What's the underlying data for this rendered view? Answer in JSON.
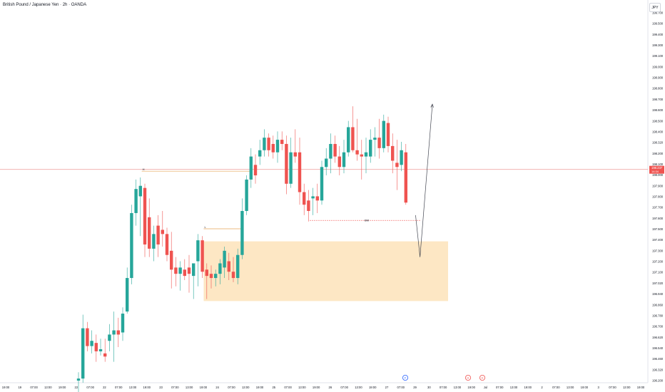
{
  "title": "British Pound / Japanese Yen · 2h · OANDA",
  "currency": "JPY",
  "colors": {
    "up": "#26a69a",
    "down": "#ef5350",
    "zone": "#fde7c4",
    "level": "#e6a456",
    "price_line": "#f0a8a6",
    "price_badge": "#ef5350"
  },
  "price_badge": {
    "price": "198.237",
    "time": "14:34"
  },
  "labels": {
    "high_label": "H",
    "low_label": "L",
    "bm_label": "BM"
  },
  "events": [
    "F",
    "H",
    "H"
  ],
  "chart_data": {
    "type": "candlestick",
    "ylim": [
      196.2,
      199.8
    ],
    "y_ticks": [
      "199.700",
      "199.500",
      "199.400",
      "199.300",
      "199.100",
      "199.000",
      "198.900",
      "198.800",
      "198.700",
      "198.600",
      "198.500",
      "198.400",
      "198.320",
      "198.200",
      "198.100",
      "198.000",
      "197.900",
      "197.800",
      "197.700",
      "197.600",
      "197.500",
      "197.400",
      "197.300",
      "197.200",
      "197.100",
      "197.020",
      "196.940",
      "196.860",
      "196.780",
      "196.700",
      "196.620",
      "196.540",
      "196.460",
      "196.320",
      "196.200"
    ],
    "x_ticks": [
      "19:00",
      "19",
      "07:00",
      "13:00",
      "19:00",
      "22",
      "07:00",
      "22",
      "07:00",
      "13:00",
      "19:00",
      "23",
      "07:00",
      "13:00",
      "19:00",
      "24",
      "07:00",
      "13:00",
      "19:00",
      "25",
      "07:00",
      "13:00",
      "19:00",
      "26",
      "07:00",
      "13:00",
      "19:00",
      "27",
      "07:00",
      "29",
      "30",
      "07:00",
      "13:00",
      "19:00",
      "Jul",
      "07:00",
      "13:00",
      "19:00",
      "2",
      "07:00",
      "13:00",
      "19:00",
      "3",
      "07:00",
      "13:00",
      "19:00"
    ],
    "candles": [
      {
        "o": 196.22,
        "h": 196.3,
        "l": 196.1,
        "c": 196.24
      },
      {
        "o": 196.24,
        "h": 196.85,
        "l": 196.2,
        "c": 196.72
      },
      {
        "o": 196.72,
        "h": 196.78,
        "l": 196.5,
        "c": 196.55
      },
      {
        "o": 196.55,
        "h": 196.7,
        "l": 196.48,
        "c": 196.6
      },
      {
        "o": 196.58,
        "h": 196.66,
        "l": 196.4,
        "c": 196.5
      },
      {
        "o": 196.5,
        "h": 196.62,
        "l": 196.46,
        "c": 196.52
      },
      {
        "o": 196.48,
        "h": 196.62,
        "l": 196.4,
        "c": 196.45
      },
      {
        "o": 196.6,
        "h": 196.76,
        "l": 196.5,
        "c": 196.66
      },
      {
        "o": 196.66,
        "h": 196.88,
        "l": 196.4,
        "c": 196.7
      },
      {
        "o": 196.7,
        "h": 196.82,
        "l": 196.54,
        "c": 196.66
      },
      {
        "o": 196.68,
        "h": 196.92,
        "l": 196.6,
        "c": 196.86
      },
      {
        "o": 196.88,
        "h": 197.3,
        "l": 196.86,
        "c": 197.2
      },
      {
        "o": 197.2,
        "h": 197.9,
        "l": 197.14,
        "c": 197.82
      },
      {
        "o": 197.82,
        "h": 198.14,
        "l": 197.7,
        "c": 198.05
      },
      {
        "o": 197.98,
        "h": 198.16,
        "l": 197.6,
        "c": 198.08
      },
      {
        "o": 198.06,
        "h": 198.1,
        "l": 197.4,
        "c": 197.52
      },
      {
        "o": 197.78,
        "h": 197.96,
        "l": 197.4,
        "c": 197.48
      },
      {
        "o": 197.48,
        "h": 197.7,
        "l": 197.36,
        "c": 197.62
      },
      {
        "o": 197.7,
        "h": 197.8,
        "l": 197.4,
        "c": 197.52
      },
      {
        "o": 197.66,
        "h": 197.84,
        "l": 197.5,
        "c": 197.62
      },
      {
        "o": 197.62,
        "h": 197.68,
        "l": 197.36,
        "c": 197.42
      },
      {
        "o": 197.46,
        "h": 197.64,
        "l": 197.1,
        "c": 197.28
      },
      {
        "o": 197.3,
        "h": 197.4,
        "l": 197.12,
        "c": 197.24
      },
      {
        "o": 197.24,
        "h": 197.36,
        "l": 197.08,
        "c": 197.3
      },
      {
        "o": 197.28,
        "h": 197.38,
        "l": 197.18,
        "c": 197.22
      },
      {
        "o": 197.3,
        "h": 197.42,
        "l": 197.06,
        "c": 197.24
      },
      {
        "o": 197.22,
        "h": 197.34,
        "l": 197.0,
        "c": 197.34
      },
      {
        "o": 197.36,
        "h": 197.62,
        "l": 197.12,
        "c": 197.56
      },
      {
        "o": 197.56,
        "h": 197.6,
        "l": 197.2,
        "c": 197.26
      },
      {
        "o": 197.28,
        "h": 197.34,
        "l": 197.0,
        "c": 197.22
      },
      {
        "o": 197.24,
        "h": 197.32,
        "l": 197.1,
        "c": 197.2
      },
      {
        "o": 197.2,
        "h": 197.28,
        "l": 197.12,
        "c": 197.24
      },
      {
        "o": 197.24,
        "h": 197.38,
        "l": 197.14,
        "c": 197.34
      },
      {
        "o": 197.3,
        "h": 197.5,
        "l": 197.2,
        "c": 197.46
      },
      {
        "o": 197.36,
        "h": 197.44,
        "l": 197.18,
        "c": 197.26
      },
      {
        "o": 197.26,
        "h": 197.4,
        "l": 197.16,
        "c": 197.2
      },
      {
        "o": 197.2,
        "h": 197.48,
        "l": 197.14,
        "c": 197.42
      },
      {
        "o": 197.42,
        "h": 197.96,
        "l": 197.38,
        "c": 197.84
      },
      {
        "o": 197.84,
        "h": 198.18,
        "l": 197.8,
        "c": 198.14
      },
      {
        "o": 198.14,
        "h": 198.44,
        "l": 198.06,
        "c": 198.36
      },
      {
        "o": 198.28,
        "h": 198.38,
        "l": 198.1,
        "c": 198.18
      },
      {
        "o": 198.36,
        "h": 198.52,
        "l": 198.28,
        "c": 198.42
      },
      {
        "o": 198.42,
        "h": 198.62,
        "l": 198.36,
        "c": 198.54
      },
      {
        "o": 198.54,
        "h": 198.58,
        "l": 198.36,
        "c": 198.42
      },
      {
        "o": 198.48,
        "h": 198.56,
        "l": 198.34,
        "c": 198.4
      },
      {
        "o": 198.4,
        "h": 198.6,
        "l": 198.3,
        "c": 198.52
      },
      {
        "o": 198.52,
        "h": 198.6,
        "l": 198.42,
        "c": 198.48
      },
      {
        "o": 198.48,
        "h": 198.56,
        "l": 198.0,
        "c": 198.1
      },
      {
        "o": 198.1,
        "h": 198.54,
        "l": 198.06,
        "c": 198.4
      },
      {
        "o": 198.4,
        "h": 198.62,
        "l": 198.3,
        "c": 198.36
      },
      {
        "o": 198.4,
        "h": 198.54,
        "l": 197.9,
        "c": 198.02
      },
      {
        "o": 198.02,
        "h": 198.1,
        "l": 197.8,
        "c": 197.9
      },
      {
        "o": 197.94,
        "h": 198.04,
        "l": 197.74,
        "c": 197.84
      },
      {
        "o": 197.96,
        "h": 198.06,
        "l": 197.8,
        "c": 197.98
      },
      {
        "o": 197.98,
        "h": 198.1,
        "l": 197.82,
        "c": 197.94
      },
      {
        "o": 197.94,
        "h": 198.32,
        "l": 197.9,
        "c": 198.26
      },
      {
        "o": 198.26,
        "h": 198.44,
        "l": 198.18,
        "c": 198.34
      },
      {
        "o": 198.34,
        "h": 198.58,
        "l": 198.2,
        "c": 198.48
      },
      {
        "o": 198.48,
        "h": 198.56,
        "l": 198.3,
        "c": 198.36
      },
      {
        "o": 198.36,
        "h": 198.46,
        "l": 198.18,
        "c": 198.26
      },
      {
        "o": 198.26,
        "h": 198.52,
        "l": 198.2,
        "c": 198.4
      },
      {
        "o": 198.4,
        "h": 198.7,
        "l": 198.36,
        "c": 198.64
      },
      {
        "o": 198.64,
        "h": 198.84,
        "l": 198.4,
        "c": 198.42
      },
      {
        "o": 198.42,
        "h": 198.72,
        "l": 198.32,
        "c": 198.38
      },
      {
        "o": 198.38,
        "h": 198.52,
        "l": 198.14,
        "c": 198.36
      },
      {
        "o": 198.36,
        "h": 198.54,
        "l": 198.2,
        "c": 198.4
      },
      {
        "o": 198.36,
        "h": 198.62,
        "l": 198.3,
        "c": 198.52
      },
      {
        "o": 198.52,
        "h": 198.64,
        "l": 198.36,
        "c": 198.54
      },
      {
        "o": 198.54,
        "h": 198.72,
        "l": 198.34,
        "c": 198.44
      },
      {
        "o": 198.44,
        "h": 198.76,
        "l": 198.4,
        "c": 198.7
      },
      {
        "o": 198.68,
        "h": 198.74,
        "l": 198.4,
        "c": 198.46
      },
      {
        "o": 198.46,
        "h": 198.58,
        "l": 198.2,
        "c": 198.32
      },
      {
        "o": 198.3,
        "h": 198.52,
        "l": 198.04,
        "c": 198.26
      },
      {
        "o": 198.28,
        "h": 198.5,
        "l": 198.22,
        "c": 198.42
      },
      {
        "o": 198.4,
        "h": 198.48,
        "l": 197.9,
        "c": 197.92
      }
    ],
    "current_price": 198.237,
    "zone": {
      "top": 197.55,
      "bottom": 196.98
    },
    "high_level": 198.22,
    "low_level": 197.67,
    "bm_level": 197.75,
    "projection": [
      {
        "i": 76.2,
        "p": 197.8
      },
      {
        "i": 77.2,
        "p": 197.4
      },
      {
        "i": 80,
        "p": 198.86
      }
    ]
  }
}
